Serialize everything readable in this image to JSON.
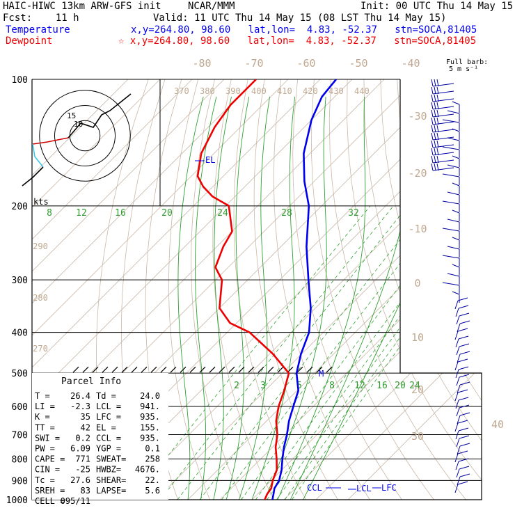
{
  "header": {
    "title_left": "HAIC-HIWC 13km ARW-GFS init",
    "title_center": "NCAR/MMM",
    "init": "Init: 00 UTC Thu 14 May 15",
    "fcst": "Fcst:    11 h",
    "valid": "Valid: 11 UTC Thu 14 May 15 (08 LST Thu 14 May 15)",
    "temp_label": "Temperature",
    "temp_info": "x,y=264.80, 98.60   lat,lon=  4.83, -52.37   stn=SOCA,81405",
    "dew_label": "Dewpoint",
    "dew_info": "☆ x,y=264.80, 98.60   lat,lon=  4.83, -52.37   stn=SOCA,81405",
    "barb_label_1": "Full barb:",
    "barb_label_2": "5 m s⁻¹"
  },
  "axes": {
    "pressure_labels": [
      "100",
      "200",
      "300",
      "400",
      "500",
      "600",
      "700",
      "800",
      "900",
      "1000"
    ],
    "pressure_values": [
      100,
      200,
      300,
      400,
      500,
      600,
      700,
      800,
      900,
      1000
    ],
    "theta_labels": [
      "370",
      "380",
      "390",
      "400",
      "410",
      "420",
      "430",
      "440"
    ],
    "top_temp_labels": [
      "-80",
      "-70",
      "-60",
      "-50",
      "-40"
    ],
    "right_temp_labels": [
      "-30",
      "-20",
      "-10",
      "0",
      "10",
      "20",
      "30",
      "40"
    ],
    "mixing_labels_200": [
      "8",
      "12",
      "16",
      "20",
      "24",
      "28",
      "32"
    ],
    "mixing_labels_550": [
      "2",
      "3",
      "5",
      "8",
      "12",
      "16",
      "20",
      "24"
    ],
    "left_theta_labels": [
      "290",
      "280",
      "270"
    ],
    "hodo_label": "kts",
    "hodo_ring_labels": [
      "15",
      "10"
    ]
  },
  "markers": {
    "el": "EL",
    "m": "M",
    "ccl": "CCL",
    "lcl": "LCL",
    "lfc": "LFC"
  },
  "parcel": {
    "title": "Parcel Info",
    "rows": [
      {
        "a": "T   =",
        "av": "26.4",
        "b": "Td =",
        "bv": "24.0"
      },
      {
        "a": "LI  =",
        "av": "-2.3",
        "b": "LCL =",
        "bv": "941."
      },
      {
        "a": "K   =",
        "av": "35",
        "b": "LFC =",
        "bv": "935."
      },
      {
        "a": "TT  =",
        "av": "42",
        "b": "EL  =",
        "bv": "155."
      },
      {
        "a": "SWI =",
        "av": "0.2",
        "b": "CCL =",
        "bv": "935."
      },
      {
        "a": "PW  =",
        "av": "6.09",
        "b": "YGP =",
        "bv": "0.1"
      },
      {
        "a": "CAPE =",
        "av": "771",
        "b": "SWEAT=",
        "bv": "258"
      },
      {
        "a": "CIN  =",
        "av": "-25",
        "b": "HWBZ=",
        "bv": "4676."
      },
      {
        "a": "Tc  =",
        "av": "27.6",
        "b": "SHEAR=",
        "bv": "22."
      },
      {
        "a": "SREH =",
        "av": "83",
        "b": "LAPSE=",
        "bv": "5.6"
      },
      {
        "a": "CELL =",
        "av": "095/11",
        "b": "",
        "bv": ""
      }
    ]
  },
  "chart_data": {
    "type": "line",
    "title": "HAIC-HIWC 13km ARW-GFS init",
    "xlabel": "",
    "ylabel": "",
    "y_axis": "pressure (hPa), log scale, 100-1000",
    "series": [
      {
        "name": "Temperature",
        "color": "#0000ee",
        "points": [
          [
            1000,
            26.4
          ],
          [
            970,
            25.0
          ],
          [
            940,
            23.5
          ],
          [
            900,
            22.5
          ],
          [
            850,
            20.0
          ],
          [
            800,
            16.8
          ],
          [
            750,
            13.6
          ],
          [
            700,
            10.6
          ],
          [
            650,
            7.0
          ],
          [
            600,
            3.8
          ],
          [
            550,
            0.4
          ],
          [
            500,
            -5.6
          ],
          [
            450,
            -10.2
          ],
          [
            400,
            -14.4
          ],
          [
            350,
            -21.5
          ],
          [
            300,
            -31.0
          ],
          [
            250,
            -42.0
          ],
          [
            200,
            -54.0
          ],
          [
            175,
            -63.0
          ],
          [
            150,
            -72.0
          ],
          [
            125,
            -80.0
          ],
          [
            110,
            -84.0
          ],
          [
            100,
            -85.0
          ]
        ]
      },
      {
        "name": "Dewpoint",
        "color": "#ee0000",
        "points": [
          [
            1000,
            24.0
          ],
          [
            970,
            23.0
          ],
          [
            940,
            22.5
          ],
          [
            900,
            20.5
          ],
          [
            850,
            18.5
          ],
          [
            800,
            15.0
          ],
          [
            750,
            11.0
          ],
          [
            700,
            7.6
          ],
          [
            650,
            3.0
          ],
          [
            600,
            -0.8
          ],
          [
            550,
            -4.0
          ],
          [
            500,
            -8.0
          ],
          [
            450,
            -19.0
          ],
          [
            400,
            -33.0
          ],
          [
            380,
            -42.0
          ],
          [
            350,
            -50.0
          ],
          [
            300,
            -58.0
          ],
          [
            280,
            -64.0
          ],
          [
            250,
            -68.0
          ],
          [
            230,
            -70.0
          ],
          [
            200,
            -79.0
          ],
          [
            190,
            -87.0
          ],
          [
            180,
            -93.0
          ],
          [
            170,
            -98.0
          ],
          [
            150,
            -104.0
          ],
          [
            130,
            -108.0
          ],
          [
            115,
            -110.0
          ],
          [
            100,
            -110.0
          ]
        ]
      }
    ],
    "hodograph": {
      "rings_kts": [
        5,
        10,
        15
      ],
      "segments": [
        {
          "color": "#d00000",
          "points": [
            [
              -25,
              -4
            ],
            [
              -18,
              -3
            ],
            [
              -8,
              -1
            ]
          ]
        },
        {
          "color": "#40c8e8",
          "points": [
            [
              -25,
              -4
            ],
            [
              -24,
              -10
            ],
            [
              -20,
              -15
            ]
          ]
        },
        {
          "color": "#000000",
          "points": [
            [
              -20,
              -15
            ],
            [
              -25,
              -20
            ],
            [
              -30,
              -24
            ]
          ]
        },
        {
          "color": "#000000",
          "points": [
            [
              -8,
              -1
            ],
            [
              -2,
              6
            ],
            [
              4,
              4
            ],
            [
              8,
              10
            ],
            [
              12,
              12
            ],
            [
              22,
              20
            ]
          ]
        }
      ]
    },
    "legend": "top-left",
    "grid": true
  },
  "colors": {
    "isotherm": "#c8b8a8",
    "dry_adiabat": "#c8b8a8",
    "moist_adiabat": "#30a030",
    "mixing_ratio": "#30a030",
    "temperature": "#0000ee",
    "dewpoint": "#ee0000",
    "barbs": "#0000a0"
  }
}
